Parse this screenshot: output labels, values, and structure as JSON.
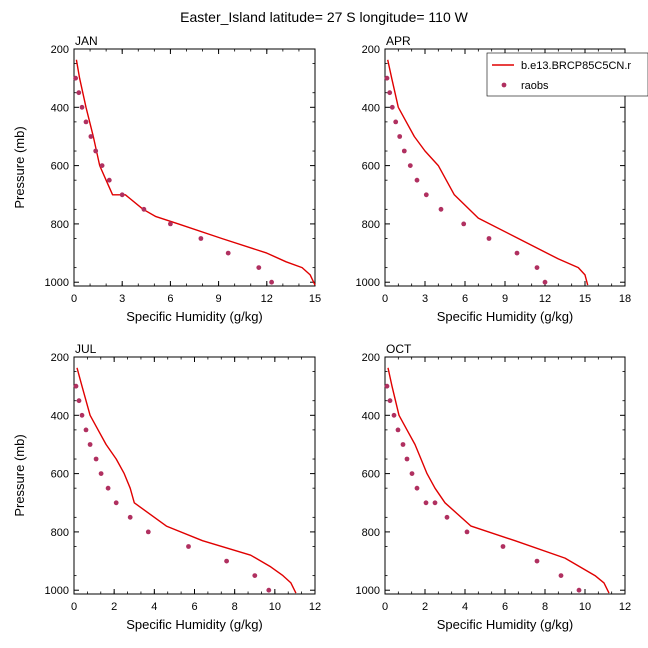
{
  "title": "Easter_Island  latitude= 27 S longitude= 110 W",
  "colors": {
    "model": "#e00000",
    "obs": "#b03060",
    "axis": "#000000"
  },
  "legend": {
    "model_label": "b.e13.BRCP85C5CN.r",
    "obs_label": "raobs"
  },
  "chart_data": [
    {
      "type": "line",
      "panel": "JAN",
      "xlabel": "Specific Humidity (g/kg)",
      "ylabel": "Pressure (mb)",
      "xlim": [
        0,
        15
      ],
      "ylim": [
        1013,
        200
      ],
      "xticks": [
        0,
        3,
        6,
        9,
        12,
        15
      ],
      "yticks": [
        200,
        400,
        600,
        800,
        1000
      ],
      "series": [
        {
          "name": "b.e13.BRCP85C5CN.r",
          "kind": "line",
          "x": [
            0.15,
            0.35,
            0.75,
            1.2,
            1.6,
            2.0,
            2.4,
            3.2,
            4.3,
            5.1,
            6.5,
            9.2,
            12.0,
            13.2,
            14.2,
            14.7,
            15.0
          ],
          "y": [
            237,
            300,
            400,
            500,
            600,
            650,
            700,
            700,
            750,
            775,
            800,
            850,
            900,
            930,
            950,
            975,
            1010
          ]
        },
        {
          "name": "raobs",
          "kind": "scatter",
          "x": [
            0.1,
            0.3,
            0.5,
            0.75,
            1.05,
            1.35,
            1.75,
            2.2,
            3.0,
            4.35,
            6.0,
            7.9,
            9.6,
            11.5,
            12.3
          ],
          "y": [
            300,
            350,
            400,
            450,
            500,
            550,
            600,
            650,
            700,
            750,
            800,
            850,
            900,
            950,
            1000
          ]
        }
      ]
    },
    {
      "type": "line",
      "panel": "APR",
      "xlabel": "Specific Humidity (g/kg)",
      "ylabel": "",
      "xlim": [
        0,
        18
      ],
      "ylim": [
        1013,
        200
      ],
      "xticks": [
        0,
        3,
        6,
        9,
        12,
        15,
        18
      ],
      "yticks": [
        200,
        400,
        600,
        800,
        1000
      ],
      "series": [
        {
          "name": "b.e13.BRCP85C5CN.r",
          "kind": "line",
          "x": [
            0.2,
            0.5,
            1.0,
            1.6,
            2.2,
            3.0,
            4.0,
            5.2,
            7.0,
            10.0,
            13.0,
            14.5,
            15.0,
            15.2
          ],
          "y": [
            237,
            300,
            400,
            450,
            500,
            550,
            600,
            700,
            780,
            850,
            920,
            950,
            975,
            1010
          ]
        },
        {
          "name": "raobs",
          "kind": "scatter",
          "x": [
            0.15,
            0.35,
            0.55,
            0.8,
            1.1,
            1.45,
            1.9,
            2.4,
            3.1,
            4.2,
            5.9,
            7.8,
            9.9,
            11.4,
            12.0
          ],
          "y": [
            300,
            350,
            400,
            450,
            500,
            550,
            600,
            650,
            700,
            750,
            800,
            850,
            900,
            950,
            1000
          ]
        }
      ]
    },
    {
      "type": "line",
      "panel": "JUL",
      "xlabel": "Specific Humidity (g/kg)",
      "ylabel": "Pressure (mb)",
      "xlim": [
        0,
        12
      ],
      "ylim": [
        1013,
        200
      ],
      "xticks": [
        0,
        2,
        4,
        6,
        8,
        10,
        12
      ],
      "yticks": [
        200,
        400,
        600,
        800,
        1000
      ],
      "series": [
        {
          "name": "b.e13.BRCP85C5CN.r",
          "kind": "line",
          "x": [
            0.15,
            0.4,
            0.8,
            1.2,
            1.6,
            2.1,
            2.5,
            2.8,
            3.0,
            4.6,
            6.4,
            8.8,
            9.8,
            10.4,
            10.8,
            11.05
          ],
          "y": [
            237,
            300,
            400,
            450,
            500,
            550,
            600,
            650,
            700,
            780,
            830,
            880,
            920,
            950,
            975,
            1010
          ]
        },
        {
          "name": "raobs",
          "kind": "scatter",
          "x": [
            0.1,
            0.25,
            0.4,
            0.6,
            0.8,
            1.1,
            1.35,
            1.7,
            2.1,
            2.8,
            3.7,
            5.7,
            7.6,
            9.0,
            9.7
          ],
          "y": [
            300,
            350,
            400,
            450,
            500,
            550,
            600,
            650,
            700,
            750,
            800,
            850,
            900,
            950,
            1000
          ]
        }
      ]
    },
    {
      "type": "line",
      "panel": "OCT",
      "xlabel": "Specific Humidity (g/kg)",
      "ylabel": "",
      "xlim": [
        0,
        12
      ],
      "ylim": [
        1013,
        200
      ],
      "xticks": [
        0,
        2,
        4,
        6,
        8,
        10,
        12
      ],
      "yticks": [
        200,
        400,
        600,
        800,
        1000
      ],
      "series": [
        {
          "name": "b.e13.BRCP85C5CN.r",
          "kind": "line",
          "x": [
            0.15,
            0.35,
            0.7,
            1.1,
            1.5,
            1.8,
            2.1,
            2.5,
            3.0,
            4.3,
            6.5,
            9.0,
            10.5,
            10.95,
            11.2
          ],
          "y": [
            237,
            300,
            400,
            450,
            500,
            550,
            600,
            650,
            700,
            780,
            830,
            890,
            950,
            975,
            1010
          ]
        },
        {
          "name": "raobs",
          "kind": "scatter",
          "x": [
            0.1,
            0.25,
            0.45,
            0.65,
            0.9,
            1.1,
            1.35,
            1.6,
            2.05,
            2.5,
            3.1,
            4.1,
            5.9,
            7.6,
            8.8,
            9.7
          ],
          "y": [
            300,
            350,
            400,
            450,
            500,
            550,
            600,
            650,
            700,
            700,
            750,
            800,
            850,
            900,
            950,
            1000
          ]
        }
      ]
    }
  ]
}
